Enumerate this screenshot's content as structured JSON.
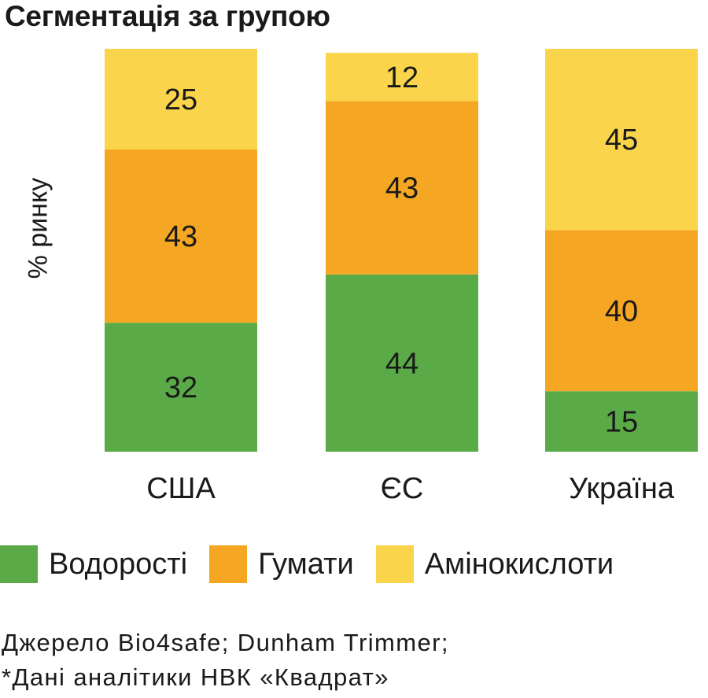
{
  "chart_data": {
    "type": "bar",
    "stacked": true,
    "normalized": true,
    "title": "Сегментація за групою",
    "ylabel": "% ринку",
    "xlabel": "",
    "categories": [
      "США",
      "ЄС",
      "Україна"
    ],
    "series": [
      {
        "name": "Водорості",
        "color": "#5aab47",
        "values": [
          32,
          44,
          15
        ]
      },
      {
        "name": "Гумати",
        "color": "#f5a623",
        "values": [
          43,
          43,
          40
        ]
      },
      {
        "name": "Амінокислоти",
        "color": "#fad54b",
        "values": [
          25,
          12,
          45
        ]
      }
    ],
    "legend": "bottom",
    "grid": false
  },
  "source": {
    "line1": "Джерело Bio4safe; Dunham Trimmer;",
    "line2": "*Дані аналітики НВК «Квадрат»"
  }
}
